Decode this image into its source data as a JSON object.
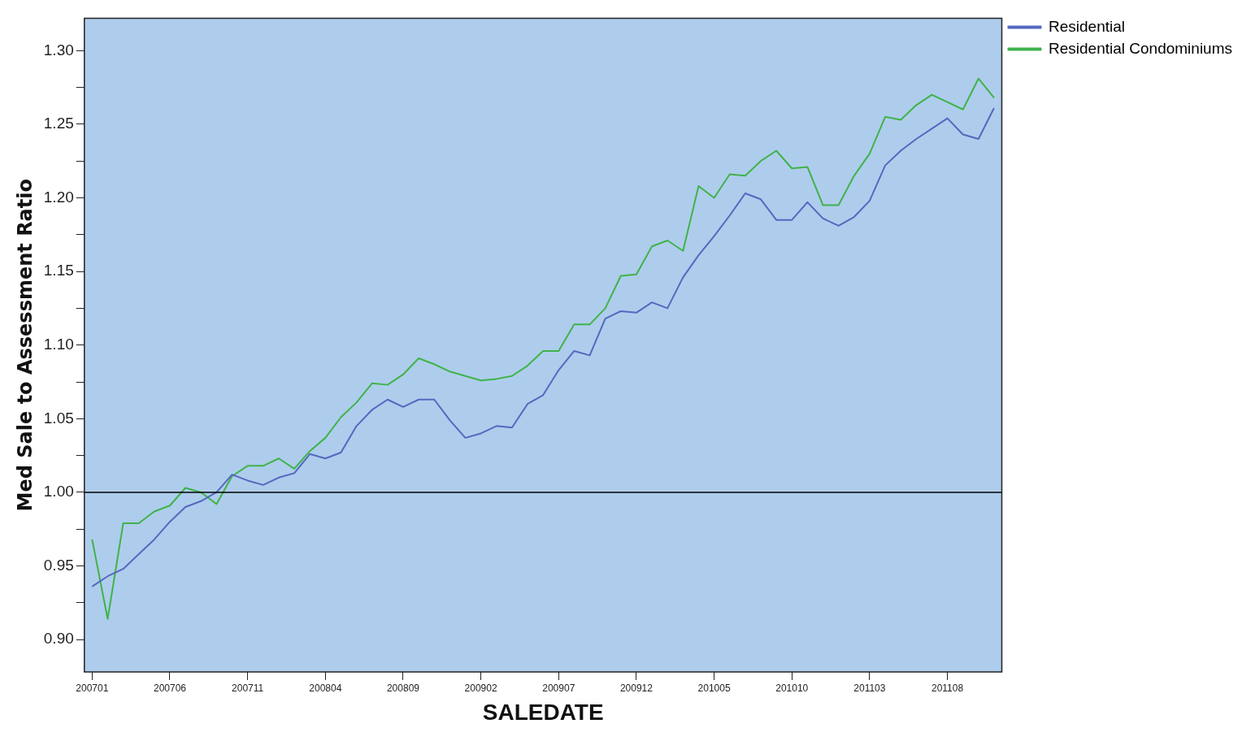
{
  "chart_data": {
    "type": "line",
    "xlabel": "SALEDATE",
    "ylabel": "Med Sale to Assessment Ratio",
    "categories": [
      "200701",
      null,
      null,
      null,
      null,
      "200706",
      null,
      null,
      null,
      null,
      "200711",
      null,
      null,
      null,
      null,
      "200804",
      null,
      null,
      null,
      null,
      "200809",
      null,
      null,
      null,
      null,
      "200902",
      null,
      null,
      null,
      null,
      "200907",
      null,
      null,
      null,
      null,
      "200912",
      null,
      null,
      null,
      null,
      "201005",
      null,
      null,
      null,
      null,
      "201010",
      null,
      null,
      null,
      null,
      "201103",
      null,
      null,
      null,
      null,
      "201108",
      null,
      null,
      null
    ],
    "series": [
      {
        "name": "Residential",
        "color": "#5468c0",
        "values": [
          0.936,
          0.943,
          0.948,
          0.958,
          0.968,
          0.98,
          0.99,
          0.994,
          1.0,
          1.012,
          1.008,
          1.005,
          1.01,
          1.013,
          1.026,
          1.023,
          1.027,
          1.045,
          1.056,
          1.063,
          1.058,
          1.063,
          1.063,
          1.049,
          1.037,
          1.04,
          1.045,
          1.044,
          1.06,
          1.066,
          1.083,
          1.096,
          1.093,
          1.118,
          1.123,
          1.122,
          1.129,
          1.125,
          1.146,
          1.161,
          1.174,
          1.188,
          1.203,
          1.199,
          1.185,
          1.185,
          1.197,
          1.186,
          1.181,
          1.187,
          1.198,
          1.222,
          1.232,
          1.24,
          1.247,
          1.254,
          1.243,
          1.24,
          1.261
        ]
      },
      {
        "name": "Residential Condominiums",
        "color": "#3fb34a",
        "values": [
          0.968,
          0.914,
          0.979,
          0.979,
          0.987,
          0.991,
          1.003,
          1.0,
          0.992,
          1.011,
          1.018,
          1.018,
          1.023,
          1.016,
          1.028,
          1.037,
          1.051,
          1.061,
          1.074,
          1.073,
          1.08,
          1.091,
          1.087,
          1.082,
          1.079,
          1.076,
          1.077,
          1.079,
          1.086,
          1.096,
          1.096,
          1.114,
          1.114,
          1.125,
          1.147,
          1.148,
          1.167,
          1.171,
          1.164,
          1.208,
          1.2,
          1.216,
          1.215,
          1.225,
          1.232,
          1.22,
          1.221,
          1.195,
          1.195,
          1.215,
          1.23,
          1.255,
          1.253,
          1.263,
          1.27,
          1.265,
          1.26,
          1.281,
          1.268
        ]
      }
    ],
    "ylim": [
      0.878,
      1.322
    ],
    "yticks": [
      {
        "value": 0.9,
        "label": "0.90"
      },
      {
        "value": 0.925,
        "label": null
      },
      {
        "value": 0.95,
        "label": "0.95"
      },
      {
        "value": 0.975,
        "label": null
      },
      {
        "value": 1.0,
        "label": "1.00"
      },
      {
        "value": 1.025,
        "label": null
      },
      {
        "value": 1.05,
        "label": "1.05"
      },
      {
        "value": 1.075,
        "label": null
      },
      {
        "value": 1.1,
        "label": "1.10"
      },
      {
        "value": 1.125,
        "label": null
      },
      {
        "value": 1.15,
        "label": "1.15"
      },
      {
        "value": 1.175,
        "label": null
      },
      {
        "value": 1.2,
        "label": "1.20"
      },
      {
        "value": 1.225,
        "label": null
      },
      {
        "value": 1.25,
        "label": "1.25"
      },
      {
        "value": 1.275,
        "label": null
      },
      {
        "value": 1.3,
        "label": "1.30"
      }
    ],
    "ref_lines": [
      {
        "axis": "y",
        "value": 1.0,
        "color": "#000000"
      }
    ],
    "grid": false,
    "legend": "top right",
    "marker": "none",
    "line_style": "solid"
  }
}
